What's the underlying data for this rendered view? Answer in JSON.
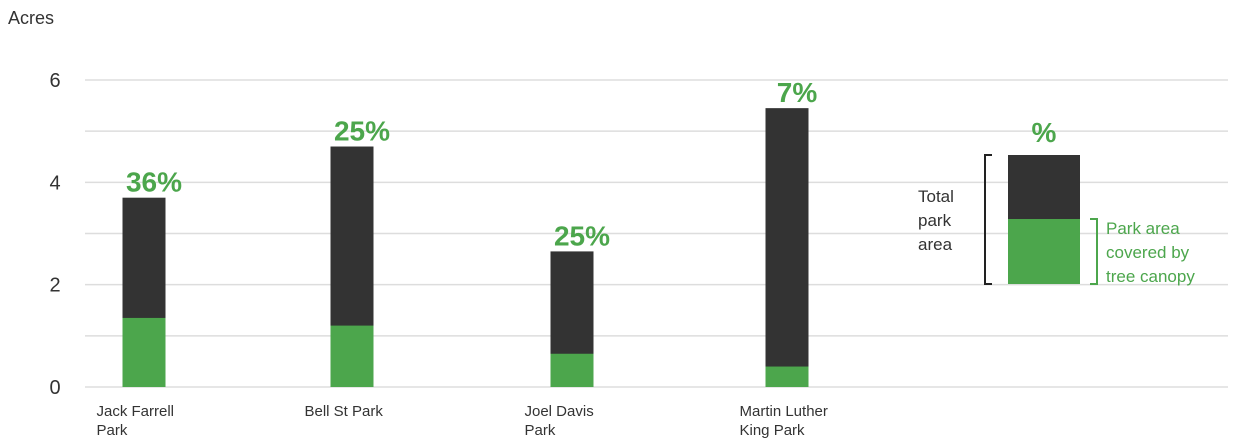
{
  "chart_data": {
    "type": "bar",
    "ylabel": "Acres",
    "ylim": [
      0,
      6
    ],
    "yticks": [
      0,
      2,
      4,
      6
    ],
    "grid": true,
    "categories": [
      [
        "Jack Farrell",
        "Park"
      ],
      [
        "Bell St Park"
      ],
      [
        "Joel Davis",
        "Park"
      ],
      [
        "Martin Luther",
        "King Park"
      ]
    ],
    "series": [
      {
        "name": "Park area covered by tree canopy",
        "values": [
          1.35,
          1.2,
          0.65,
          0.4
        ]
      },
      {
        "name": "Total park area",
        "values": [
          3.7,
          4.7,
          2.65,
          5.45
        ]
      }
    ],
    "percent_labels": [
      "36%",
      "25%",
      "25%",
      "7%"
    ],
    "colors": {
      "total": "#333333",
      "canopy": "#4ca64c",
      "label": "#4ca64c",
      "grid": "#dddddd"
    }
  },
  "legend": {
    "percent": "%",
    "total_lines": [
      "Total",
      "park",
      "area"
    ],
    "canopy_lines": [
      "Park area",
      "covered by",
      "tree canopy"
    ]
  }
}
